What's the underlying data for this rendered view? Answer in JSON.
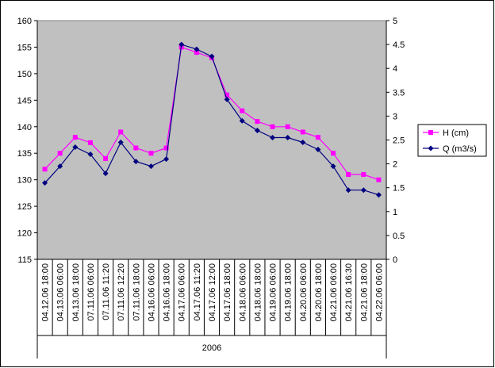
{
  "chart_data": {
    "type": "line",
    "categories": [
      "04.12.06 18:00",
      "04.13.06 06:00",
      "04.13.06 18:00",
      "07.11.06 06:00",
      "07.11.06 11:20",
      "07.11.06 12:20",
      "07.11.06 18:00",
      "04.16.06 06:00",
      "04.16.06 18:00",
      "04.17.06 06:00",
      "04.17.06 11:20",
      "04.17.06 12:00",
      "04.17.06 18:00",
      "04.18.06 06:00",
      "04.18.06 18:00",
      "04.19.06 06:00",
      "04.19.06 18:00",
      "04.20.06 06:00",
      "04.20.06 18:00",
      "04.21.06 06:00",
      "04.21.06 16:30",
      "04.21.06 18:00",
      "04.22.06 06:00"
    ],
    "category_group_label": "2006",
    "series": [
      {
        "name": "H (cm)",
        "axis": "left",
        "color": "#ff00ff",
        "marker": "square",
        "values": [
          132,
          135,
          138,
          137,
          134,
          139,
          136,
          135,
          136,
          155,
          154,
          153,
          146,
          143,
          141,
          140,
          140,
          139,
          138,
          135,
          131,
          131,
          130
        ]
      },
      {
        "name": "Q (m3/s)",
        "axis": "right",
        "color": "#000080",
        "marker": "diamond",
        "values": [
          1.6,
          1.95,
          2.35,
          2.2,
          1.8,
          2.45,
          2.05,
          1.95,
          2.1,
          4.5,
          4.4,
          4.25,
          3.35,
          2.9,
          2.7,
          2.55,
          2.55,
          2.45,
          2.3,
          1.95,
          1.45,
          1.45,
          1.35
        ]
      }
    ],
    "y_left": {
      "min": 115,
      "max": 160,
      "ticks": [
        115,
        120,
        125,
        130,
        135,
        140,
        145,
        150,
        155,
        160
      ]
    },
    "y_right": {
      "min": 0,
      "max": 5,
      "ticks": [
        "0",
        "0.5",
        "1",
        "1.5",
        "2",
        "2.5",
        "3",
        "3.5",
        "4",
        "4.5",
        "5"
      ]
    },
    "grid": false,
    "legend_position": "right",
    "plot_background": "#c0c0c0"
  }
}
